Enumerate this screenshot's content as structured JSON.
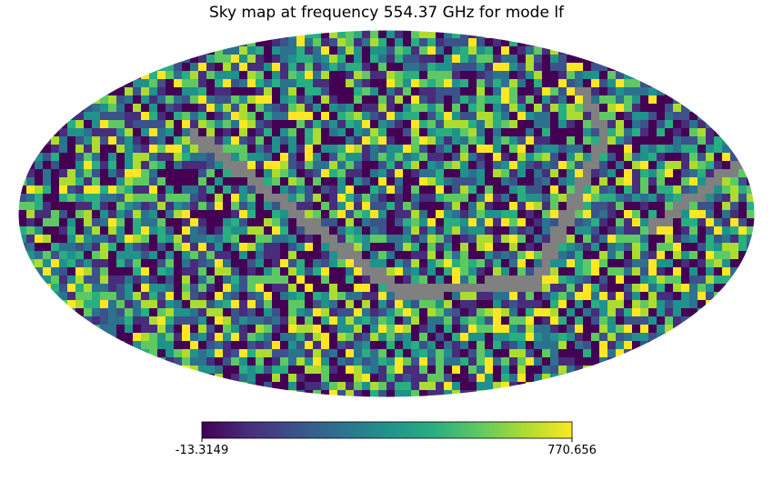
{
  "chart_data": {
    "type": "heatmap",
    "title": "Sky map at frequency 554.37 GHz for mode lf",
    "projection": "mollweide",
    "colormap": "viridis",
    "colorbar": {
      "min": -13.3149,
      "max": 770.656,
      "min_label": "-13.3149",
      "max_label": "770.656",
      "orientation": "horizontal"
    },
    "masked_color": "#808080",
    "background_color": "#ffffff",
    "grid": false
  }
}
